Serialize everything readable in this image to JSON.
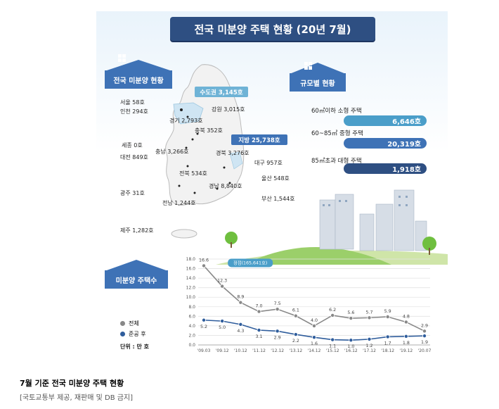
{
  "title": "전국 미분양 주택 현황 (20년 7월)",
  "sections": {
    "national": "전국 미분양 현황",
    "by_size": "규모별 현황",
    "count": "미분양 주택수"
  },
  "map": {
    "capital": "수도권 3,145호",
    "provincial": "지방 25,738호",
    "regions": {
      "seoul": "서울  58호",
      "incheon": "인천 294호",
      "gangwon": "강원 3,015호",
      "gyeonggi": "경기 2,793호",
      "chungbuk": "충북 352호",
      "sejong": "세종 0호",
      "chungnam": "충남 3,266호",
      "daejeon": "대전 849호",
      "gyeongbuk": "경북 3,276호",
      "daegu": "대구 957호",
      "jeonbuk": "전북 534호",
      "ulsan": "울산 548호",
      "gyeongnam": "경남 8,840호",
      "gwangju": "광주 31호",
      "busan": "부산 1,544호",
      "jeonnam": "전남 1,244호",
      "jeju": "제주 1,282호"
    }
  },
  "sizes": [
    {
      "label": "60㎡이하 소형 주택",
      "value": "6,646호"
    },
    {
      "label": "60~85㎡ 중형 주택",
      "value": "20,319호"
    },
    {
      "label": "85㎡초과 대형 주택",
      "value": "1,918호"
    }
  ],
  "legend": {
    "total": "전체",
    "completed": "준공 후",
    "unit": "단위 : 만 호"
  },
  "callout": "정점(165,641호)",
  "caption": {
    "title": "7월 기준 전국 미분양 주택 현황",
    "source": "[국토교통부 제공, 재판매 및 DB 금지]"
  },
  "colors": {
    "navy": "#2e4f82",
    "blue": "#3e72b6",
    "teal": "#4a9ec9",
    "total_line": "#888888",
    "completed_line": "#2f5d9c"
  },
  "chart_data": {
    "type": "line",
    "categories": [
      "'09.03",
      "'09.12",
      "'10.12",
      "'11.12",
      "'12.12",
      "'13.12",
      "'14.12",
      "'15.12",
      "'16.12",
      "'17.12",
      "'18.12",
      "'19.12",
      "'20.07"
    ],
    "series": [
      {
        "name": "전체",
        "values": [
          16.6,
          12.3,
          8.9,
          7.0,
          7.5,
          6.1,
          4.0,
          6.2,
          5.6,
          5.7,
          5.9,
          4.8,
          2.9
        ]
      },
      {
        "name": "준공 후",
        "values": [
          5.2,
          5.0,
          4.3,
          3.1,
          2.9,
          2.2,
          1.6,
          1.1,
          1.0,
          1.2,
          1.7,
          1.8,
          1.9
        ]
      }
    ],
    "yticks": [
      "0.0",
      "2.0",
      "4.0",
      "6.0",
      "8.0",
      "10.0",
      "12.0",
      "14.0",
      "16.0",
      "18.0"
    ],
    "ylim": [
      0,
      18
    ],
    "grid": true
  }
}
